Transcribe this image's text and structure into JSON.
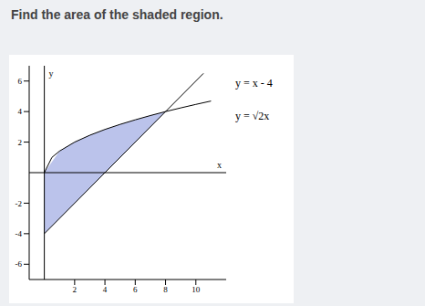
{
  "chart_data": {
    "type": "line",
    "title": "Find the area of the shaded region.",
    "x_label": "x",
    "y_label": "y",
    "xlim": [
      -1,
      12
    ],
    "ylim": [
      -7,
      7
    ],
    "xticks": [
      2,
      4,
      6,
      8,
      10
    ],
    "yticks": [
      -6,
      -4,
      -2,
      2,
      4,
      6
    ],
    "series": [
      {
        "name": "y = x - 4",
        "color": "#000000",
        "x": [
          0,
          10.5
        ],
        "values": [
          -4,
          6.5
        ]
      },
      {
        "name": "y = √2x",
        "color": "#000000",
        "x": [
          0,
          0.5,
          1,
          2,
          3,
          4,
          5,
          6,
          7,
          8,
          9,
          10,
          11
        ],
        "values": [
          0,
          1,
          1.41,
          2,
          2.45,
          2.83,
          3.16,
          3.46,
          3.74,
          4,
          4.24,
          4.47,
          4.69
        ]
      }
    ],
    "shaded": {
      "color": "#aab4e6",
      "x": [
        0,
        1,
        2,
        3,
        4,
        5,
        6,
        7,
        8
      ],
      "lower": [
        -4,
        -3,
        -2,
        -1,
        0,
        1,
        2,
        3,
        4
      ],
      "upper": [
        0,
        1.41,
        2,
        2.45,
        2.83,
        3.16,
        3.46,
        3.74,
        4
      ]
    }
  }
}
